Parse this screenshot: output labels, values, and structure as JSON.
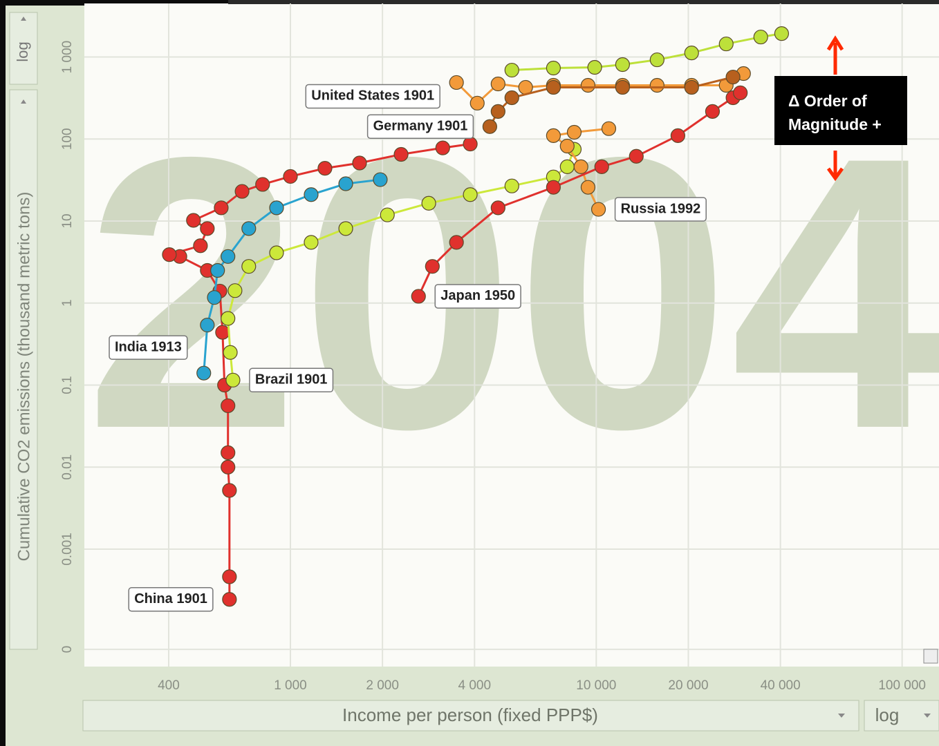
{
  "chart_data": {
    "type": "scatter",
    "year": "2004",
    "xlabel": "Income per person (fixed PPP$)",
    "ylabel": "Cumulative CO2 emissions (thousand metric tons)",
    "xscale_control": "log",
    "yscale_control": "log",
    "log_x": true,
    "log_y": true,
    "grid": true,
    "xlim": [
      212,
      132000
    ],
    "xticks": [
      400,
      {
        "value": 1000,
        "label": "1 000"
      },
      {
        "value": 2000,
        "label": "2 000"
      },
      {
        "value": 4000,
        "label": "4 000"
      },
      {
        "value": 10000,
        "label": "10 000"
      },
      {
        "value": 20000,
        "label": "20 000"
      },
      {
        "value": 40000,
        "label": "40 000"
      },
      {
        "value": 100000,
        "label": "100 000"
      }
    ],
    "ylim": [
      3.7e-05,
      4500
    ],
    "yticks": [
      {
        "value": 6e-05,
        "label": "0"
      },
      0.001,
      0.01,
      0.1,
      1,
      10,
      100,
      {
        "value": 1000,
        "label": "1 000"
      }
    ],
    "annotation": [
      "Δ Order of",
      "Magnitude +"
    ],
    "series": [
      {
        "label": "China 1901",
        "color": "#e0312d",
        "x": [
          632,
          632,
          632,
          625,
          625,
          625,
          609,
          600,
          588,
          535,
          435,
          402,
          508,
          535,
          482,
          594,
          695,
          811,
          1000,
          1297,
          1683,
          2301,
          3148,
          3873
        ],
        "values": [
          0.000244,
          0.00046,
          0.0052,
          0.01,
          0.015,
          0.056,
          0.1,
          0.44,
          1.4,
          2.5,
          3.7,
          3.9,
          5.0,
          8.1,
          10.2,
          14.5,
          23,
          28,
          35,
          44,
          51,
          65,
          78,
          87
        ]
      },
      {
        "label": "India 1913",
        "color": "#29a3cf",
        "x": [
          521,
          535,
          564,
          578,
          625,
          731,
          901,
          1169,
          1517,
          1967
        ],
        "values": [
          0.14,
          0.54,
          1.17,
          2.5,
          3.7,
          8.1,
          14.5,
          21,
          28.5,
          32
        ]
      },
      {
        "label": "Brazil 1901",
        "color": "#cce83a",
        "x": [
          649,
          636,
          625,
          659,
          731,
          901,
          1169,
          1517,
          2075,
          2834,
          3873,
          5297,
          7244,
          8035,
          8472
        ],
        "values": [
          0.115,
          0.25,
          0.65,
          1.42,
          2.8,
          4.1,
          5.5,
          8.1,
          11.9,
          16.5,
          21,
          26.8,
          34.5,
          46,
          75
        ]
      },
      {
        "label": "United States 1901",
        "color": "#f29a3a",
        "x": [
          3491,
          4083,
          4775,
          5875,
          7244,
          9399,
          12190,
          15810,
          20500,
          26600,
          30300
        ],
        "values": [
          489,
          274,
          470,
          427,
          452,
          452,
          452,
          452,
          452,
          452,
          629
        ]
      },
      {
        "color": "#bde03a",
        "x": [
          5297,
          7244,
          9884,
          12190,
          15810,
          20500,
          26600,
          34500,
          40370
        ],
        "values": [
          692,
          734,
          748,
          809,
          925,
          1122,
          1445,
          1754,
          1932
        ]
      },
      {
        "label": "Germany 1901",
        "color": "#b7601e",
        "x": [
          4487,
          4775,
          5297,
          7244,
          12190,
          20500,
          28000
        ],
        "values": [
          142,
          217,
          319,
          427,
          427,
          427,
          570
        ]
      },
      {
        "label": "Russia 1992",
        "color": "#f29a3a",
        "x": [
          10170,
          9399,
          8913,
          8035,
          7244,
          8472,
          10990
        ],
        "values": [
          13.9,
          25.8,
          46,
          82,
          110,
          121,
          134
        ]
      },
      {
        "label": "Japan 1950",
        "color": "#e0312d",
        "x": [
          2623,
          2912,
          3491,
          4775,
          7244,
          10420,
          13520,
          18490,
          23990,
          28000,
          29580
        ],
        "values": [
          1.21,
          2.8,
          5.5,
          14.5,
          25.8,
          46,
          61.6,
          110,
          217,
          319,
          366
        ]
      }
    ]
  }
}
